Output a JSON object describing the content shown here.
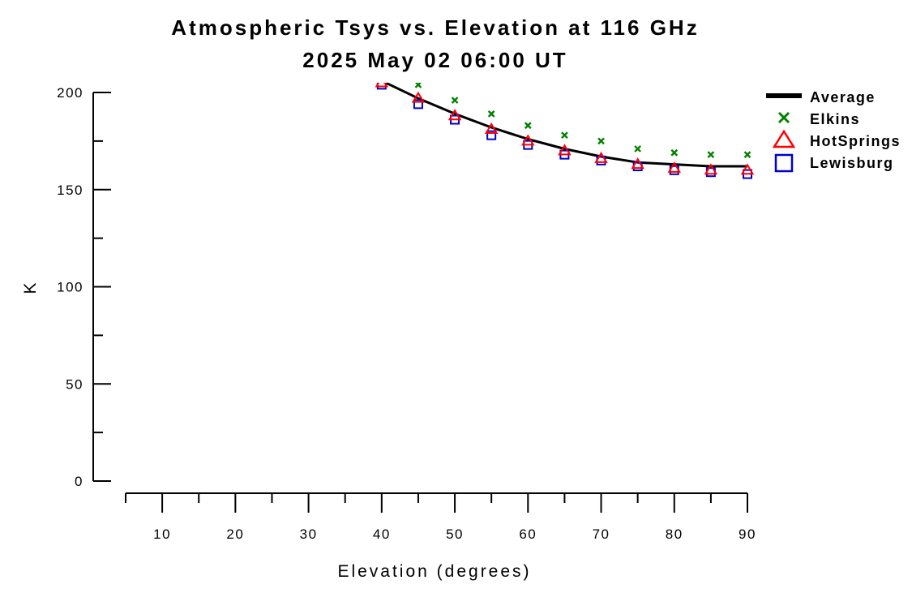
{
  "chart_data": {
    "type": "line",
    "title": "Atmospheric Tsys vs. Elevation at 116 GHz",
    "subtitle": "2025 May 02 06:00 UT",
    "xlabel": "Elevation (degrees)",
    "ylabel": "K",
    "xlim": [
      5,
      90
    ],
    "ylim": [
      0,
      200
    ],
    "x_ticks": [
      10,
      20,
      30,
      40,
      50,
      60,
      70,
      80,
      90
    ],
    "y_ticks": [
      0,
      50,
      100,
      150,
      200
    ],
    "legend_position": "top-right",
    "grid": false,
    "series": [
      {
        "name": "Average",
        "marker": "line",
        "color": "#000000",
        "x": [
          40,
          45,
          50,
          55,
          60,
          65,
          70,
          75,
          80,
          85,
          90
        ],
        "y": [
          206,
          197,
          189,
          182,
          176,
          171,
          167,
          164,
          163,
          162,
          162
        ]
      },
      {
        "name": "Elkins",
        "marker": "x",
        "color": "#008000",
        "x": [
          45,
          50,
          55,
          60,
          65,
          70,
          75,
          80,
          85,
          90
        ],
        "y": [
          204,
          196,
          189,
          183,
          178,
          175,
          171,
          169,
          168,
          168
        ]
      },
      {
        "name": "HotSprings",
        "marker": "triangle",
        "color": "#ff0000",
        "x": [
          40,
          45,
          50,
          55,
          60,
          65,
          70,
          75,
          80,
          85,
          90
        ],
        "y": [
          205,
          197,
          188,
          181,
          175,
          170,
          166,
          163,
          161,
          160,
          160
        ]
      },
      {
        "name": "Lewisburg",
        "marker": "square",
        "color": "#0000cc",
        "x": [
          40,
          45,
          50,
          55,
          60,
          65,
          70,
          75,
          80,
          85,
          90
        ],
        "y": [
          204,
          194,
          186,
          178,
          173,
          168,
          165,
          162,
          160,
          159,
          158
        ]
      }
    ]
  }
}
